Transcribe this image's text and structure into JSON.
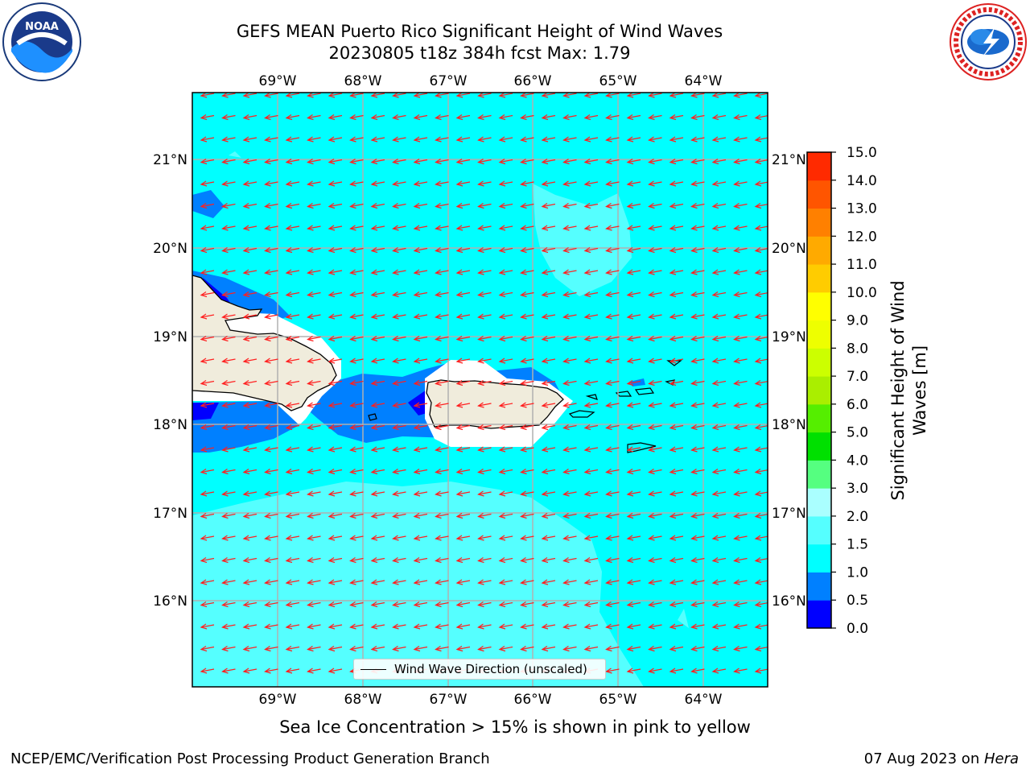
{
  "title": {
    "line1": "GEFS MEAN Puerto Rico Significant Height of Wind Waves",
    "line2": "20230805 t18z 384h fcst   Max: 1.79"
  },
  "logos": {
    "left": "noaa-logo",
    "right": "nws-logo"
  },
  "map": {
    "lon_labels": [
      "69°W",
      "68°W",
      "67°W",
      "66°W",
      "65°W",
      "64°W"
    ],
    "lat_labels": [
      "21°N",
      "20°N",
      "19°N",
      "18°N",
      "17°N",
      "16°N"
    ],
    "land_color": "#f0ecdc",
    "sea_color": "#00ffff",
    "arrow_color": "#ff2020",
    "legend_label": "Wind Wave Direction (unscaled)"
  },
  "colorbar": {
    "label_line1": "Significant Height of Wind",
    "label_line2": "Waves [m]",
    "ticks": [
      "0.0",
      "0.5",
      "1.0",
      "1.5",
      "2.0",
      "3.0",
      "4.0",
      "5.0",
      "6.0",
      "7.0",
      "8.0",
      "9.0",
      "10.0",
      "11.0",
      "12.0",
      "13.0",
      "14.0",
      "15.0"
    ],
    "colors": [
      "#0000ff",
      "#0080ff",
      "#00ffff",
      "#55ffff",
      "#aaffff",
      "#55ff80",
      "#00e000",
      "#55ee00",
      "#aaee00",
      "#ccff00",
      "#eeff00",
      "#ffff00",
      "#ffcc00",
      "#ffaa00",
      "#ff8000",
      "#ff5500",
      "#ff2a00",
      "#ff0000"
    ]
  },
  "note": "Sea Ice Concentration > 15% is shown in pink to yellow",
  "footer": {
    "left": "NCEP/EMC/Verification Post Processing Product Generation Branch",
    "date": "07 Aug 2023 on ",
    "host": "Hera"
  }
}
